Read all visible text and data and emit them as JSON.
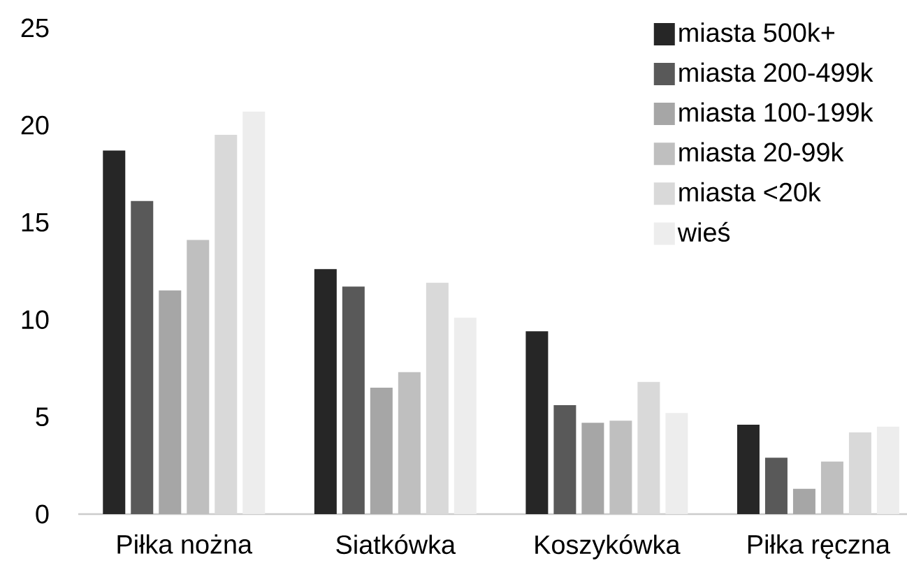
{
  "chart_data": {
    "type": "bar",
    "categories": [
      "Piłka nożna",
      "Siatkówka",
      "Koszykówka",
      "Piłka ręczna"
    ],
    "series": [
      {
        "name": "miasta 500k+",
        "color": "#262626",
        "values": [
          18.7,
          12.6,
          9.4,
          4.6
        ]
      },
      {
        "name": "miasta 200-499k",
        "color": "#595959",
        "values": [
          16.1,
          11.7,
          5.6,
          2.9
        ]
      },
      {
        "name": "miasta 100-199k",
        "color": "#a6a6a6",
        "values": [
          11.5,
          6.5,
          4.7,
          1.3
        ]
      },
      {
        "name": "miasta 20-99k",
        "color": "#bfbfbf",
        "values": [
          14.1,
          7.3,
          4.8,
          2.7
        ]
      },
      {
        "name": "miasta <20k",
        "color": "#d9d9d9",
        "values": [
          19.5,
          11.9,
          6.8,
          4.2
        ]
      },
      {
        "name": "wieś",
        "color": "#ededed",
        "values": [
          20.7,
          10.1,
          5.2,
          4.5
        ]
      }
    ],
    "ylim": [
      0,
      25
    ],
    "yticks": [
      0,
      5,
      10,
      15,
      20,
      25
    ],
    "grid": false,
    "legend": "top right"
  }
}
